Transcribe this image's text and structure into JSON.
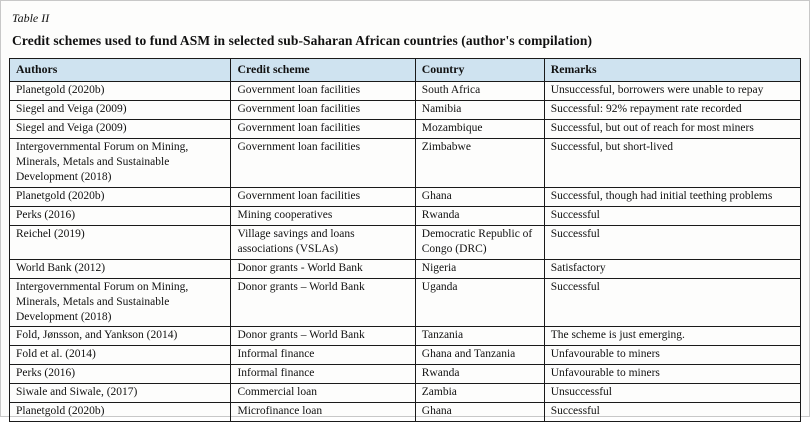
{
  "figure": {
    "label": "Table II",
    "caption": "Credit schemes used to fund ASM in selected sub-Saharan African countries (author's compilation)"
  },
  "table": {
    "columns": [
      "Authors",
      "Credit scheme",
      "Country",
      "Remarks"
    ],
    "rows": [
      [
        "Planetgold (2020b)",
        "Government loan facilities",
        "South Africa",
        "Unsuccessful, borrowers were unable to repay"
      ],
      [
        "Siegel and Veiga (2009)",
        "Government loan facilities",
        "Namibia",
        "Successful: 92% repayment rate recorded"
      ],
      [
        "Siegel and Veiga (2009)",
        "Government loan facilities",
        "Mozambique",
        "Successful, but out of reach for most miners"
      ],
      [
        "Intergovernmental Forum on Mining, Minerals, Metals and Sustainable Development (2018)",
        "Government loan facilities",
        "Zimbabwe",
        "Successful, but short-lived"
      ],
      [
        "Planetgold (2020b)",
        "Government loan facilities",
        "Ghana",
        "Successful, though had initial teething problems"
      ],
      [
        "Perks (2016)",
        "Mining cooperatives",
        "Rwanda",
        "Successful"
      ],
      [
        "Reichel (2019)",
        "Village savings and loans associations (VSLAs)",
        "Democratic Republic of Congo (DRC)",
        "Successful"
      ],
      [
        "World Bank (2012)",
        "Donor grants - World Bank",
        "Nigeria",
        "Satisfactory"
      ],
      [
        "Intergovernmental Forum on Mining, Minerals, Metals and Sustainable Development (2018)",
        "Donor grants – World Bank",
        "Uganda",
        "Successful"
      ],
      [
        "Fold, Jønsson, and Yankson (2014)",
        "Donor grants – World Bank",
        "Tanzania",
        "The scheme is just emerging."
      ],
      [
        "Fold et al. (2014)",
        "Informal finance",
        "Ghana and Tanzania",
        "Unfavourable to miners"
      ],
      [
        "Perks (2016)",
        "Informal finance",
        "Rwanda",
        "Unfavourable to miners"
      ],
      [
        "Siwale and Siwale, (2017)",
        "Commercial loan",
        "Zambia",
        "Unsuccessful"
      ],
      [
        "Planetgold (2020b)",
        "Microfinance loan",
        "Ghana",
        "Successful"
      ]
    ]
  },
  "colors": {
    "header_bg": "#cfe3f0",
    "border": "#1a1a1a",
    "text": "#111111"
  }
}
